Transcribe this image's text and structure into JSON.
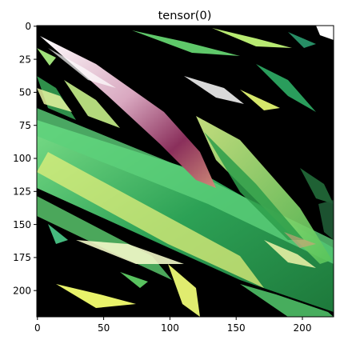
{
  "plot": {
    "title": "tensor(0)",
    "xticks": [
      "0",
      "50",
      "100",
      "150",
      "200"
    ],
    "yticks": [
      "0",
      "25",
      "50",
      "75",
      "100",
      "125",
      "150",
      "175",
      "200"
    ]
  },
  "image": {
    "description_colors": {
      "background": "#000000",
      "leaf_green": "#2fb24e",
      "leaf_light": "#b7f07a",
      "leaf_yellow": "#e8f26a",
      "pink_stem": "#c77a9b",
      "white_highlight": "#f4f6f8"
    }
  }
}
